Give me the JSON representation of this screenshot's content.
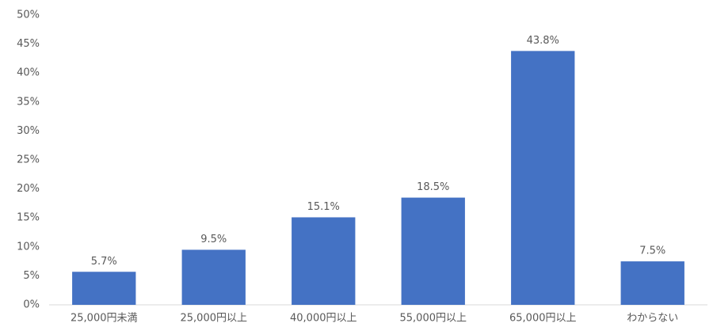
{
  "chart_data": {
    "type": "bar",
    "categories": [
      "25,000円未満",
      "25,000円以上",
      "40,000円以上",
      "55,000円以上",
      "65,000円以上",
      "わからない"
    ],
    "values": [
      5.7,
      9.5,
      15.1,
      18.5,
      43.8,
      7.5
    ],
    "value_labels": [
      "5.7%",
      "9.5%",
      "15.1%",
      "18.5%",
      "43.8%",
      "7.5%"
    ],
    "color": "#4472c4",
    "ylim": [
      0,
      50
    ],
    "yticks": [
      {
        "value": 0,
        "label": "0%"
      },
      {
        "value": 5,
        "label": "5%"
      },
      {
        "value": 10,
        "label": "10%"
      },
      {
        "value": 15,
        "label": "15%"
      },
      {
        "value": 20,
        "label": "20%"
      },
      {
        "value": 25,
        "label": "25%"
      },
      {
        "value": 30,
        "label": "30%"
      },
      {
        "value": 35,
        "label": "35%"
      },
      {
        "value": 40,
        "label": "40%"
      },
      {
        "value": 45,
        "label": "45%"
      },
      {
        "value": 50,
        "label": "50%"
      }
    ],
    "grid": false
  }
}
